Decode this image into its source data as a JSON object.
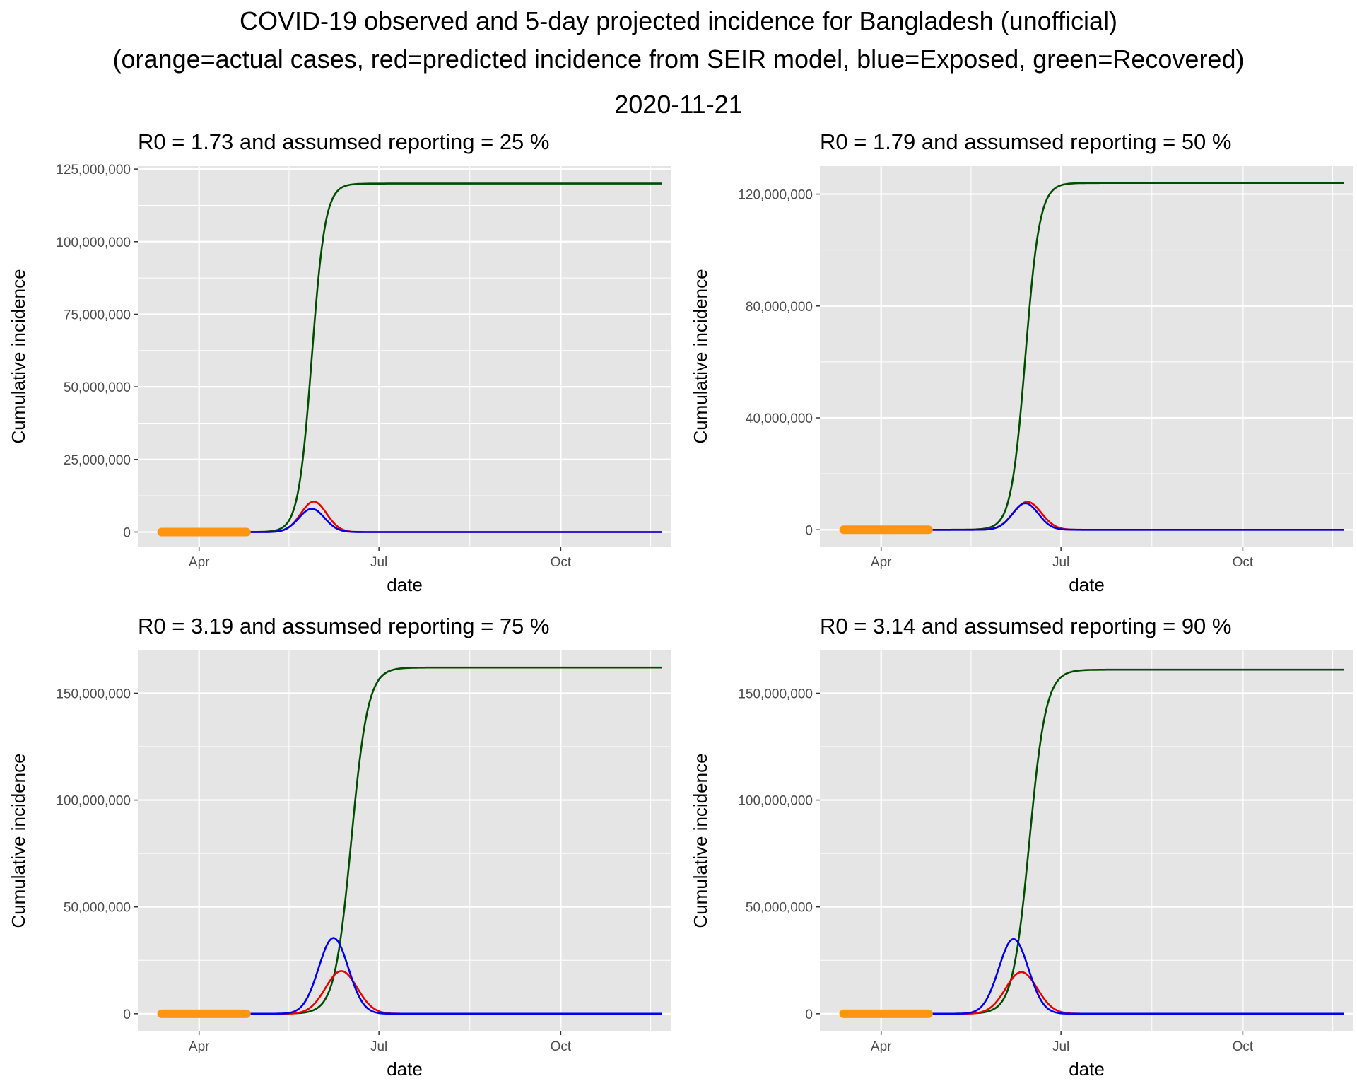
{
  "figure": {
    "title_line1": "COVID-19 observed and 5-day projected incidence for Bangladesh (unofficial)",
    "title_line2": "(orange=actual cases, red=predicted incidence from SEIR model, blue=Exposed, green=Recovered)",
    "title_line3": "2020-11-21"
  },
  "colors": {
    "panel_bg": "#e5e5e5",
    "grid": "#ffffff",
    "actual": "#ff9410",
    "predicted": "#ee0000",
    "exposed": "#0000ee",
    "recovered": "#004d00",
    "axis_text": "#4d4d4d"
  },
  "chart_data": [
    {
      "type": "line",
      "title": "R0 = 1.73 and assumsed reporting = 25 %",
      "xlabel": "date",
      "ylabel": "Cumulative incidence",
      "xlim": [
        "2020-03-01",
        "2020-11-26"
      ],
      "ylim": [
        -5000000,
        126000000
      ],
      "x_ticks": [
        {
          "date": "2020-04-01",
          "label": "Apr"
        },
        {
          "date": "2020-07-01",
          "label": "Jul"
        },
        {
          "date": "2020-10-01",
          "label": "Oct"
        }
      ],
      "y_ticks": [
        {
          "value": 0,
          "label": "0"
        },
        {
          "value": 25000000,
          "label": "25,000,000"
        },
        {
          "value": 50000000,
          "label": "50,000,000"
        },
        {
          "value": 75000000,
          "label": "75,000,000"
        },
        {
          "value": 100000000,
          "label": "100,000,000"
        },
        {
          "value": 125000000,
          "label": "125,000,000"
        }
      ],
      "x_start": "2020-03-13",
      "x_end": "2020-11-21",
      "actual_cases": {
        "start": "2020-03-13",
        "end": "2020-04-25"
      },
      "series": [
        {
          "key": "recovered",
          "peak_date": "2020-05-28",
          "final_size": 120000000,
          "steepness_days": 3.4
        },
        {
          "key": "predicted",
          "peak_date": "2020-05-29",
          "peak_value": 10500000,
          "width_days": 6.5
        },
        {
          "key": "exposed",
          "peak_date": "2020-05-28",
          "peak_value": 8000000,
          "width_days": 6.5
        }
      ]
    },
    {
      "type": "line",
      "title": "R0 = 1.79 and assumsed reporting = 50 %",
      "xlabel": "date",
      "ylabel": "Cumulative incidence",
      "xlim": [
        "2020-03-01",
        "2020-11-26"
      ],
      "ylim": [
        -6000000,
        130000000
      ],
      "x_ticks": [
        {
          "date": "2020-04-01",
          "label": "Apr"
        },
        {
          "date": "2020-07-01",
          "label": "Jul"
        },
        {
          "date": "2020-10-01",
          "label": "Oct"
        }
      ],
      "y_ticks": [
        {
          "value": 0,
          "label": "0"
        },
        {
          "value": 40000000,
          "label": "40,000,000"
        },
        {
          "value": 80000000,
          "label": "80,000,000"
        },
        {
          "value": 120000000,
          "label": "120,000,000"
        }
      ],
      "x_start": "2020-03-13",
      "x_end": "2020-11-21",
      "actual_cases": {
        "start": "2020-03-13",
        "end": "2020-04-25"
      },
      "series": [
        {
          "key": "recovered",
          "peak_date": "2020-06-13",
          "final_size": 124000000,
          "steepness_days": 3.6
        },
        {
          "key": "predicted",
          "peak_date": "2020-06-14",
          "peak_value": 10000000,
          "width_days": 7
        },
        {
          "key": "exposed",
          "peak_date": "2020-06-13",
          "peak_value": 9500000,
          "width_days": 6.5
        }
      ]
    },
    {
      "type": "line",
      "title": "R0 = 3.19 and assumsed reporting = 75 %",
      "xlabel": "date",
      "ylabel": "Cumulative incidence",
      "xlim": [
        "2020-03-01",
        "2020-11-26"
      ],
      "ylim": [
        -8000000,
        170000000
      ],
      "x_ticks": [
        {
          "date": "2020-04-01",
          "label": "Apr"
        },
        {
          "date": "2020-07-01",
          "label": "Jul"
        },
        {
          "date": "2020-10-01",
          "label": "Oct"
        }
      ],
      "y_ticks": [
        {
          "value": 0,
          "label": "0"
        },
        {
          "value": 50000000,
          "label": "50,000,000"
        },
        {
          "value": 100000000,
          "label": "100,000,000"
        },
        {
          "value": 150000000,
          "label": "150,000,000"
        }
      ],
      "x_start": "2020-03-13",
      "x_end": "2020-11-21",
      "actual_cases": {
        "start": "2020-03-13",
        "end": "2020-04-25"
      },
      "series": [
        {
          "key": "recovered",
          "peak_date": "2020-06-17",
          "final_size": 162000000,
          "steepness_days": 4.2
        },
        {
          "key": "predicted",
          "peak_date": "2020-06-12",
          "peak_value": 20000000,
          "width_days": 8
        },
        {
          "key": "exposed",
          "peak_date": "2020-06-08",
          "peak_value": 35500000,
          "width_days": 7.5
        }
      ]
    },
    {
      "type": "line",
      "title": "R0 = 3.14 and assumsed reporting = 90 %",
      "xlabel": "date",
      "ylabel": "Cumulative incidence",
      "xlim": [
        "2020-03-01",
        "2020-11-26"
      ],
      "ylim": [
        -8000000,
        170000000
      ],
      "x_ticks": [
        {
          "date": "2020-04-01",
          "label": "Apr"
        },
        {
          "date": "2020-07-01",
          "label": "Jul"
        },
        {
          "date": "2020-10-01",
          "label": "Oct"
        }
      ],
      "y_ticks": [
        {
          "value": 0,
          "label": "0"
        },
        {
          "value": 50000000,
          "label": "50,000,000"
        },
        {
          "value": 100000000,
          "label": "100,000,000"
        },
        {
          "value": 150000000,
          "label": "150,000,000"
        }
      ],
      "x_start": "2020-03-13",
      "x_end": "2020-11-21",
      "actual_cases": {
        "start": "2020-03-13",
        "end": "2020-04-25"
      },
      "series": [
        {
          "key": "recovered",
          "peak_date": "2020-06-15",
          "final_size": 161000000,
          "steepness_days": 4.2
        },
        {
          "key": "predicted",
          "peak_date": "2020-06-11",
          "peak_value": 19500000,
          "width_days": 8
        },
        {
          "key": "exposed",
          "peak_date": "2020-06-07",
          "peak_value": 35000000,
          "width_days": 7.5
        }
      ]
    }
  ]
}
